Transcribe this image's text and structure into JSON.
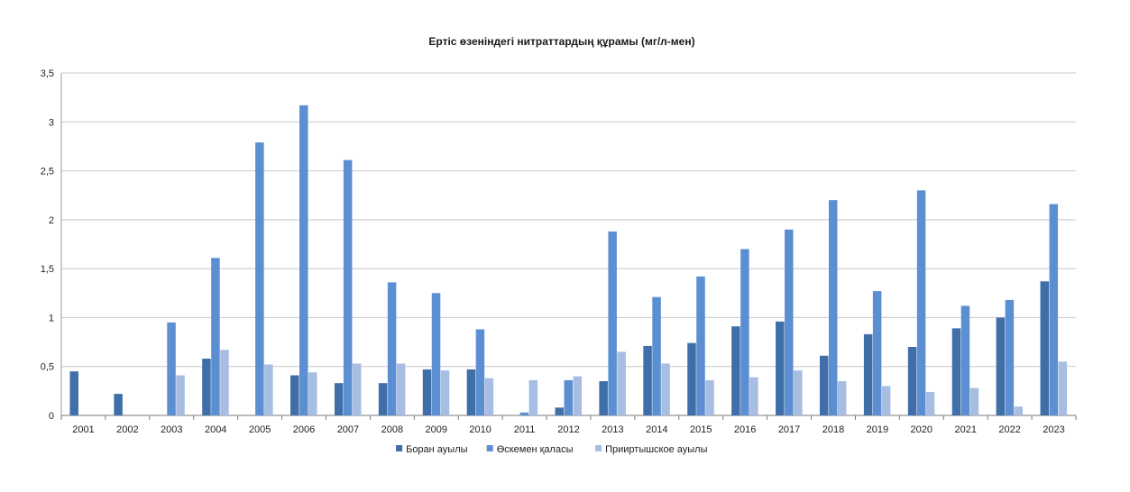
{
  "chart_data": {
    "type": "bar",
    "title": "Ертіс өзеніндегі нитраттардың құрамы (мг/л-мен)",
    "xlabel": "",
    "ylabel": "",
    "ylim": [
      0,
      3.5
    ],
    "yticks": [
      {
        "value": 0,
        "label": "0"
      },
      {
        "value": 0.5,
        "label": "0,5"
      },
      {
        "value": 1,
        "label": "1"
      },
      {
        "value": 1.5,
        "label": "1,5"
      },
      {
        "value": 2,
        "label": "2"
      },
      {
        "value": 2.5,
        "label": "2,5"
      },
      {
        "value": 3,
        "label": "3"
      },
      {
        "value": 3.5,
        "label": "3,5"
      }
    ],
    "grid": true,
    "legend_position": "bottom",
    "categories": [
      "2001",
      "2002",
      "2003",
      "2004",
      "2005",
      "2006",
      "2007",
      "2008",
      "2009",
      "2010",
      "2011",
      "2012",
      "2013",
      "2014",
      "2015",
      "2016",
      "2017",
      "2018",
      "2019",
      "2020",
      "2021",
      "2022",
      "2023"
    ],
    "series": [
      {
        "name": "Боран ауылы",
        "color": "#3f6ea8",
        "values": [
          0.45,
          0.22,
          null,
          0.58,
          null,
          0.41,
          0.33,
          0.33,
          0.47,
          0.47,
          null,
          0.08,
          0.35,
          0.71,
          0.74,
          0.91,
          0.96,
          0.61,
          0.83,
          0.7,
          0.89,
          1.0,
          1.37
        ]
      },
      {
        "name": "Өскемен қаласы",
        "color": "#5b8fd1",
        "values": [
          null,
          null,
          0.95,
          1.61,
          2.79,
          3.17,
          2.61,
          1.36,
          1.25,
          0.88,
          0.03,
          0.36,
          1.88,
          1.21,
          1.42,
          1.7,
          1.9,
          2.2,
          1.27,
          2.3,
          1.12,
          1.18,
          2.16
        ]
      },
      {
        "name": "Прииртышское ауылы",
        "color": "#a8bde2",
        "values": [
          null,
          null,
          0.41,
          0.67,
          0.52,
          0.44,
          0.53,
          0.53,
          0.46,
          0.38,
          0.36,
          0.4,
          0.65,
          0.53,
          0.36,
          0.39,
          0.46,
          0.35,
          0.3,
          0.24,
          0.28,
          0.09,
          0.55
        ]
      }
    ]
  }
}
